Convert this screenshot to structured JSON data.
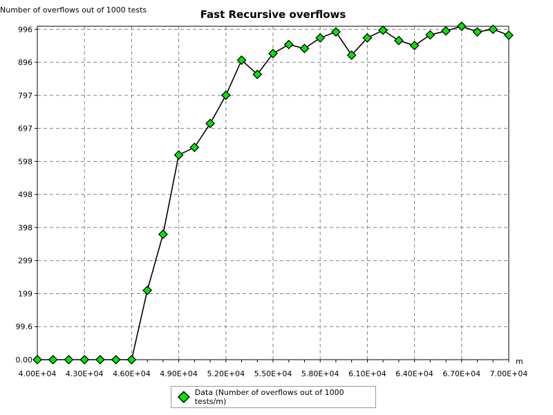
{
  "chart_data": {
    "type": "line",
    "title": "Fast Recursive overflows",
    "ylabel": "Number of overflows out of 1000 tests",
    "xlabel": "m",
    "x": [
      40000,
      41000,
      42000,
      43000,
      44000,
      45000,
      46000,
      47000,
      48000,
      49000,
      50000,
      51000,
      52000,
      53000,
      54000,
      55000,
      56000,
      57000,
      58000,
      59000,
      60000,
      61000,
      62000,
      63000,
      64000,
      65000,
      66000,
      67000,
      68000,
      69000,
      70000
    ],
    "series": [
      {
        "name": "Data (Number of overflows out of 1000 tests/m)",
        "values": [
          0,
          0,
          0,
          0,
          0,
          0,
          0,
          209,
          378,
          617,
          640,
          712,
          797,
          903,
          860,
          923,
          950,
          938,
          970,
          988,
          918,
          970,
          993,
          962,
          947,
          979,
          991,
          1005,
          988,
          996,
          978
        ]
      }
    ],
    "yticks": [
      "0.00",
      "99.6",
      "199",
      "299",
      "398",
      "498",
      "598",
      "697",
      "797",
      "896",
      "996"
    ],
    "xticks": [
      "4.00E+04",
      "4.30E+04",
      "4.60E+04",
      "4.90E+04",
      "5.20E+04",
      "5.50E+04",
      "5.80E+04",
      "6.10E+04",
      "6.40E+04",
      "6.70E+04",
      "7.00E+04"
    ],
    "ylim": [
      0,
      1005
    ],
    "xlim": [
      40000,
      70000
    ],
    "grid": true,
    "legend_position": "bottom",
    "marker_color": "#00e600",
    "line_color": "#000000"
  }
}
